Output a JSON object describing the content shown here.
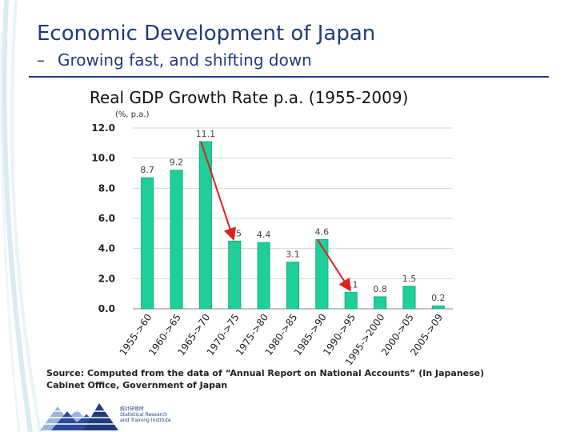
{
  "slide": {
    "title": "Economic Development of Japan",
    "subtitle_dash": "–",
    "subtitle": "Growing fast, and shifting down",
    "source_line1": "Source: Computed from the data of “Annual Report on National Accounts” (In Japanese)",
    "source_line2": "Cabinet Office, Government of Japan",
    "logo_text": [
      "統計研修所",
      "Statistical Research",
      "and Training Institute"
    ]
  },
  "chart_data": {
    "type": "bar",
    "title": "Real GDP Growth Rate p.a.  (1955-2009)",
    "unit_label": "(%, p.a.)",
    "categories": [
      "1955->60",
      "1960->65",
      "1965->70",
      "1970->75",
      "1975->80",
      "1980->85",
      "1985->90",
      "1990->95",
      "1995->2000",
      "2000->05",
      "2005->09"
    ],
    "values": [
      8.7,
      9.2,
      11.1,
      4.5,
      4.4,
      3.1,
      4.6,
      1.1,
      0.8,
      1.5,
      0.2
    ],
    "data_labels": [
      "8.7",
      "9.2",
      "11.1",
      "4.5",
      "4.4",
      "3.1",
      "4.6",
      "1.1",
      "0.8",
      "1.5",
      "0.2"
    ],
    "yticks": [
      "0.0",
      "2.0",
      "4.0",
      "6.0",
      "8.0",
      "10.0",
      "12.0"
    ],
    "ylim": [
      0,
      12
    ],
    "grid": true,
    "bar_color": "#1ecf9a",
    "arrow_color": "#e02020",
    "arrows": [
      {
        "from_index": 2,
        "to_index": 3
      },
      {
        "from_index": 6,
        "to_index": 7
      }
    ]
  }
}
